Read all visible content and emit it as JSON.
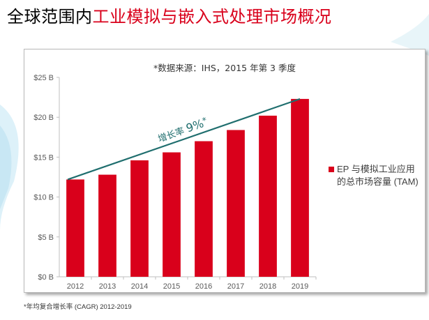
{
  "slide": {
    "title_black": "全球范围内",
    "title_red": "工业模拟与嵌入式处理市场概况",
    "footnote": "*年均复合增长率 (CAGR) 2012-2019"
  },
  "colors": {
    "title_red": "#d9001b",
    "bar": "#d9001b",
    "trend_line": "#1f6e6e",
    "trend_label": "#1f6e6e",
    "axis_text": "#595959"
  },
  "chart_data": {
    "type": "bar",
    "title": "*数据来源：IHS，2015 年第 3 季度",
    "categories": [
      "2012",
      "2013",
      "2014",
      "2015",
      "2016",
      "2017",
      "2018",
      "2019"
    ],
    "series": [
      {
        "name": "EP 与模拟工业应用的总市场容量 (TAM)",
        "values": [
          12.2,
          12.8,
          14.6,
          15.6,
          17.0,
          18.4,
          20.2,
          22.3
        ]
      }
    ],
    "ylim": [
      0,
      25
    ],
    "yticks": [
      0,
      5,
      10,
      15,
      20,
      25
    ],
    "ytick_labels": [
      "$0 B",
      "$5 B",
      "$10 B",
      "$15 B",
      "$20 B",
      "$25 B"
    ],
    "grid": false,
    "legend_position": "right",
    "annotation": {
      "text_prefix": "增长率 ",
      "text_value": "9%",
      "text_suffix": "*",
      "line_from": {
        "category": "2012",
        "y": 12.2
      },
      "line_to": {
        "category": "2019",
        "y": 22.3
      }
    }
  }
}
